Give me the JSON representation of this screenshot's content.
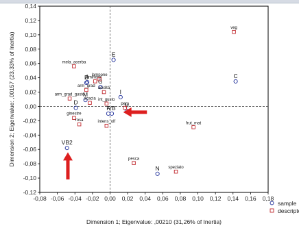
{
  "chart_data": {
    "type": "scatter",
    "xlabel": "Dimension 1; Eigenvalue: ,00210 (31,26% of Inertia)",
    "ylabel": "Dimension 2; Eigenvalue: ,00157 (23,33% of Inertia)",
    "xlim": [
      -0.08,
      0.18
    ],
    "ylim": [
      -0.12,
      0.14
    ],
    "xticks": [
      -0.08,
      -0.06,
      -0.04,
      -0.02,
      0.0,
      0.02,
      0.04,
      0.06,
      0.08,
      0.1,
      0.12,
      0.14,
      0.16,
      0.18
    ],
    "yticks": [
      -0.12,
      -0.1,
      -0.08,
      -0.06,
      -0.04,
      -0.02,
      0.0,
      0.02,
      0.04,
      0.06,
      0.08,
      0.1,
      0.12,
      0.14
    ],
    "xtick_labels": [
      "-0,08",
      "-0,06",
      "-0,04",
      "-0,02",
      "0,00",
      "0,02",
      "0,04",
      "0,06",
      "0,08",
      "0,10",
      "0,12",
      "0,14",
      "0,16",
      "0,18"
    ],
    "ytick_labels": [
      "-0,12",
      "-0,10",
      "-0,08",
      "-0,06",
      "-0,04",
      "-0,02",
      "0,00",
      "0,02",
      "0,04",
      "0,06",
      "0,08",
      "0,10",
      "0,12",
      "0,14"
    ],
    "legend_position": "bottom-right",
    "series": [
      {
        "name": "sample",
        "marker": "circle",
        "color": "#1f2f9a",
        "points": [
          {
            "label": "E",
            "x": 0.004,
            "y": 0.065
          },
          {
            "label": "C",
            "x": 0.143,
            "y": 0.035
          },
          {
            "label": "B",
            "x": -0.027,
            "y": 0.033
          },
          {
            "label": "A",
            "x": -0.026,
            "y": 0.034
          },
          {
            "label": "G",
            "x": -0.011,
            "y": 0.027
          },
          {
            "label": "I",
            "x": 0.012,
            "y": 0.013
          },
          {
            "label": "D",
            "x": -0.039,
            "y": -0.002
          },
          {
            "label": "M",
            "x": -0.028,
            "y": 0.009
          },
          {
            "label": "F",
            "x": -0.002,
            "y": -0.01
          },
          {
            "label": "VB",
            "x": 0.002,
            "y": -0.01
          },
          {
            "label": "H",
            "x": 0.019,
            "y": -0.006
          },
          {
            "label": "VB2",
            "x": -0.049,
            "y": -0.058
          },
          {
            "label": "N",
            "x": 0.054,
            "y": -0.094
          }
        ]
      },
      {
        "name": "descriptor",
        "marker": "square",
        "color": "#c0272d",
        "points": [
          {
            "label": "veg",
            "x": 0.141,
            "y": 0.104
          },
          {
            "label": "mela_acerba",
            "x": -0.041,
            "y": 0.056
          },
          {
            "label": "mineral",
            "x": -0.017,
            "y": 0.035
          },
          {
            "label": "lampone",
            "x": -0.012,
            "y": 0.038
          },
          {
            "label": "arm_grad",
            "x": -0.027,
            "y": 0.023
          },
          {
            "label": "acidità",
            "x": -0.007,
            "y": 0.02
          },
          {
            "label": "arm_grad_gusto",
            "x": -0.046,
            "y": 0.011
          },
          {
            "label": "acacia",
            "x": -0.023,
            "y": 0.005
          },
          {
            "label": "int_gusto",
            "x": -0.004,
            "y": 0.004
          },
          {
            "label": "pers",
            "x": 0.017,
            "y": -0.002
          },
          {
            "label": "ginestre",
            "x": -0.041,
            "y": -0.016
          },
          {
            "label": "rosa",
            "x": -0.035,
            "y": -0.025
          },
          {
            "label": "intens_olf",
            "x": -0.004,
            "y": -0.027
          },
          {
            "label": "frut_mat",
            "x": 0.095,
            "y": -0.029
          },
          {
            "label": "pesca",
            "x": 0.027,
            "y": -0.079
          },
          {
            "label": "speziato",
            "x": 0.075,
            "y": -0.091
          }
        ]
      }
    ],
    "annotations": [
      {
        "type": "arrow",
        "label": "",
        "from": [
          0.042,
          -0.008
        ],
        "to": [
          0.015,
          -0.008
        ],
        "color": "#dd1f1f"
      },
      {
        "type": "arrow",
        "label": "",
        "from": [
          -0.048,
          -0.102
        ],
        "to": [
          -0.048,
          -0.064
        ],
        "color": "#dd1f1f"
      }
    ]
  }
}
